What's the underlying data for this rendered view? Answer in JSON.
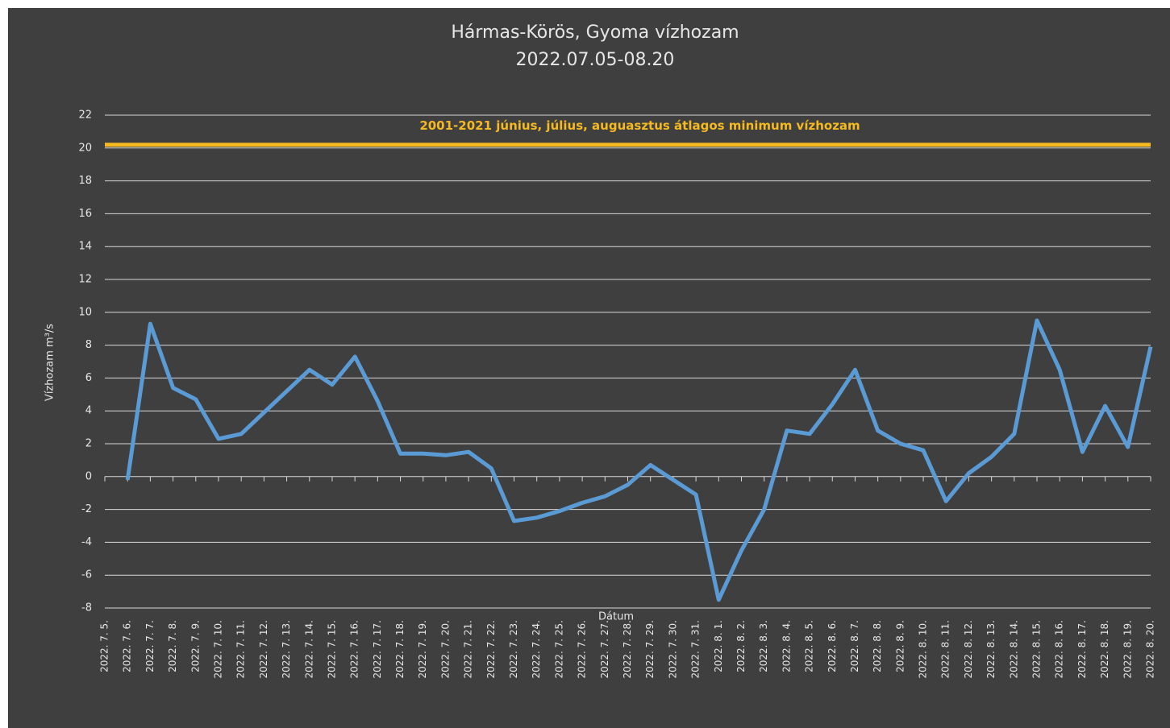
{
  "chart_data": {
    "type": "line",
    "title": "Hármas-Körös, Gyoma vízhozam",
    "subtitle": "2022.07.05-08.20",
    "x_label": "Dátum",
    "y_label": "Vízhozam m³/s",
    "categories": [
      "2022. 7. 5.",
      "2022. 7. 6.",
      "2022. 7. 7.",
      "2022. 7. 8.",
      "2022. 7. 9.",
      "2022. 7. 10.",
      "2022. 7. 11.",
      "2022. 7. 12.",
      "2022. 7. 13.",
      "2022. 7. 14.",
      "2022. 7. 15.",
      "2022. 7. 16.",
      "2022. 7. 17.",
      "2022. 7. 18.",
      "2022. 7. 19.",
      "2022. 7. 20.",
      "2022. 7. 21.",
      "2022. 7. 22.",
      "2022. 7. 23.",
      "2022. 7. 24.",
      "2022. 7. 25.",
      "2022. 7. 26.",
      "2022. 7. 27.",
      "2022. 7. 28.",
      "2022. 7. 29.",
      "2022. 7. 30.",
      "2022. 7. 31.",
      "2022. 8. 1.",
      "2022. 8. 2.",
      "2022. 8. 3.",
      "2022. 8. 4.",
      "2022. 8. 5.",
      "2022. 8. 6.",
      "2022. 8. 7.",
      "2022. 8. 8.",
      "2022. 8. 9.",
      "2022. 8. 10.",
      "2022. 8. 11.",
      "2022. 8. 12.",
      "2022. 8. 13.",
      "2022. 8. 14.",
      "2022. 8. 15.",
      "2022. 8. 16.",
      "2022. 8. 17.",
      "2022. 8. 18.",
      "2022. 8. 19.",
      "2022. 8. 20."
    ],
    "series": [
      {
        "name": "Vízhozam",
        "color": "#5b9bd5",
        "values": [
          null,
          -0.2,
          9.3,
          5.4,
          4.7,
          2.3,
          2.6,
          3.9,
          5.2,
          6.5,
          5.6,
          7.3,
          4.6,
          1.4,
          1.4,
          1.3,
          1.5,
          0.5,
          -2.7,
          -2.5,
          -2.1,
          -1.6,
          -1.2,
          -0.5,
          0.7,
          -0.2,
          -1.1,
          -7.5,
          -4.5,
          -2.0,
          2.8,
          2.6,
          4.4,
          6.5,
          2.8,
          2.0,
          1.6,
          -1.5,
          0.2,
          1.2,
          2.6,
          9.5,
          6.5,
          1.5,
          4.3,
          1.8,
          7.9
        ]
      }
    ],
    "reference_line": {
      "value": 20.2,
      "label": "2001-2021  június, július, auguasztus átlagos minimum vízhozam",
      "color": "#f5b921"
    },
    "ylim": [
      -8,
      22
    ],
    "yticks": [
      -8,
      -6,
      -4,
      -2,
      0,
      2,
      4,
      6,
      8,
      10,
      12,
      14,
      16,
      18,
      20,
      22
    ],
    "grid": true
  }
}
